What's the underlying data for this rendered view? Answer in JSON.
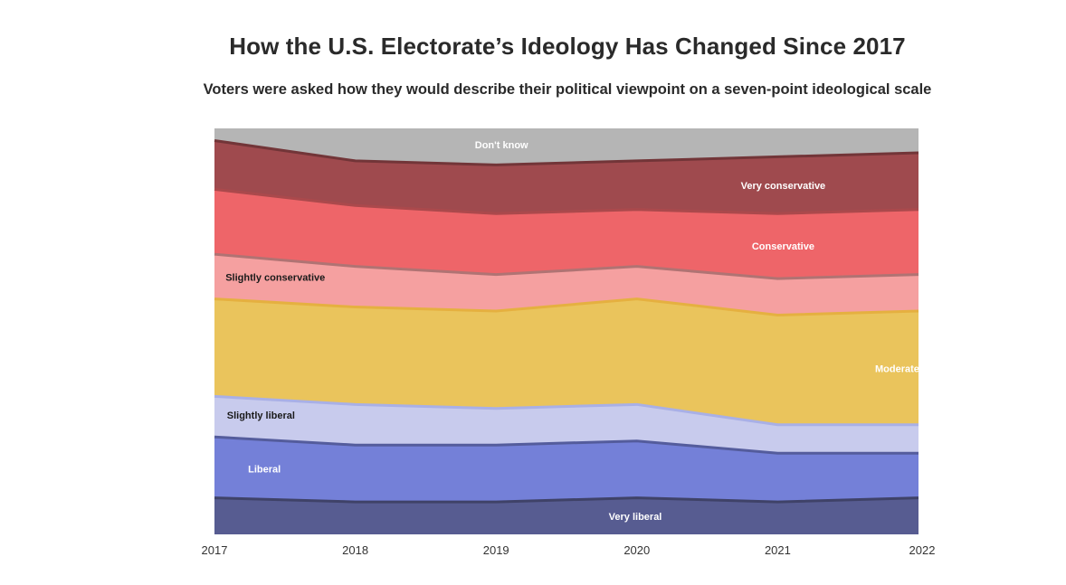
{
  "chart_data": {
    "type": "area",
    "stacked": true,
    "normalized": true,
    "title": "How the U.S. Electorate’s Ideology Has Changed Since 2017",
    "subtitle": "Voters were asked how they would describe their political viewpoint on a seven-point ideological scale",
    "x": [
      "2017",
      "2018",
      "2019",
      "2020",
      "2021",
      "2022"
    ],
    "ylim": [
      0,
      100
    ],
    "grid": false,
    "legend": "inline labels",
    "series": [
      {
        "name": "Very liberal",
        "color": "#575c91",
        "label_color": "#ffffff",
        "values": [
          9,
          8,
          8,
          9,
          8,
          9
        ]
      },
      {
        "name": "Liberal",
        "color": "#7480d8",
        "label_color": "#ffffff",
        "values": [
          15,
          14,
          14,
          14,
          12,
          11
        ]
      },
      {
        "name": "Slightly liberal",
        "color": "#c8cbed",
        "label_color": "#1a1a1a",
        "values": [
          10,
          10,
          9,
          9,
          7,
          7
        ]
      },
      {
        "name": "Moderate",
        "color": "#eac45c",
        "label_color": "#ffffff",
        "values": [
          24,
          24,
          24,
          26,
          27,
          28
        ]
      },
      {
        "name": "Slightly conservative",
        "color": "#f5a0a0",
        "label_color": "#1a1a1a",
        "values": [
          11,
          10,
          9,
          8,
          9,
          9
        ]
      },
      {
        "name": "Conservative",
        "color": "#ee6569",
        "label_color": "#ffffff",
        "values": [
          16,
          15,
          15,
          14,
          16,
          16
        ]
      },
      {
        "name": "Very conservative",
        "color": "#9f4a4e",
        "label_color": "#ffffff",
        "values": [
          12,
          11,
          12,
          12,
          14,
          14
        ]
      },
      {
        "name": "Don't know",
        "color": "#b5b5b5",
        "label_color": "#ffffff",
        "values": [
          3,
          8,
          9,
          8,
          7,
          6
        ]
      }
    ]
  }
}
